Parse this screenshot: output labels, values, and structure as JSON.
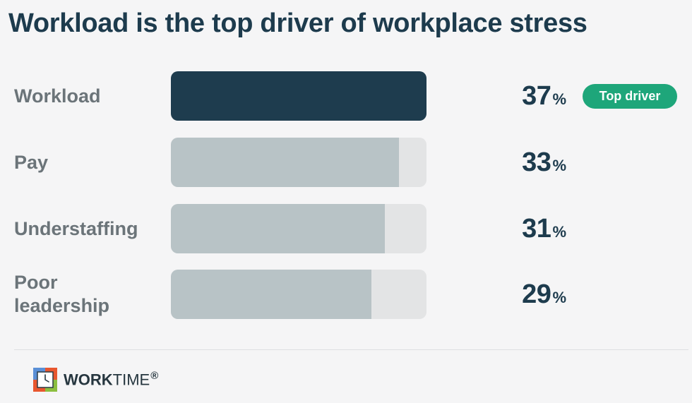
{
  "title": "Workload is the top driver of workplace stress",
  "badge": "Top driver",
  "unit": "%",
  "brand": {
    "name_bold": "WORK",
    "name_light": "TIME",
    "mark": "®"
  },
  "colors": {
    "highlight_bar": "#1e3c4e",
    "bar": "#b8c3c6",
    "track": "#e3e4e5",
    "badge": "#1ea67a"
  },
  "chart_data": {
    "type": "bar",
    "orientation": "horizontal",
    "title": "Workload is the top driver of workplace stress",
    "categories": [
      "Workload",
      "Pay",
      "Understaffing",
      "Poor leadership"
    ],
    "values": [
      37,
      33,
      31,
      29
    ],
    "unit": "%",
    "xlim": [
      0,
      37
    ],
    "highlighted_category": "Workload",
    "annotations": [
      {
        "category": "Workload",
        "text": "Top driver"
      }
    ],
    "grid": false,
    "legend": "none"
  }
}
